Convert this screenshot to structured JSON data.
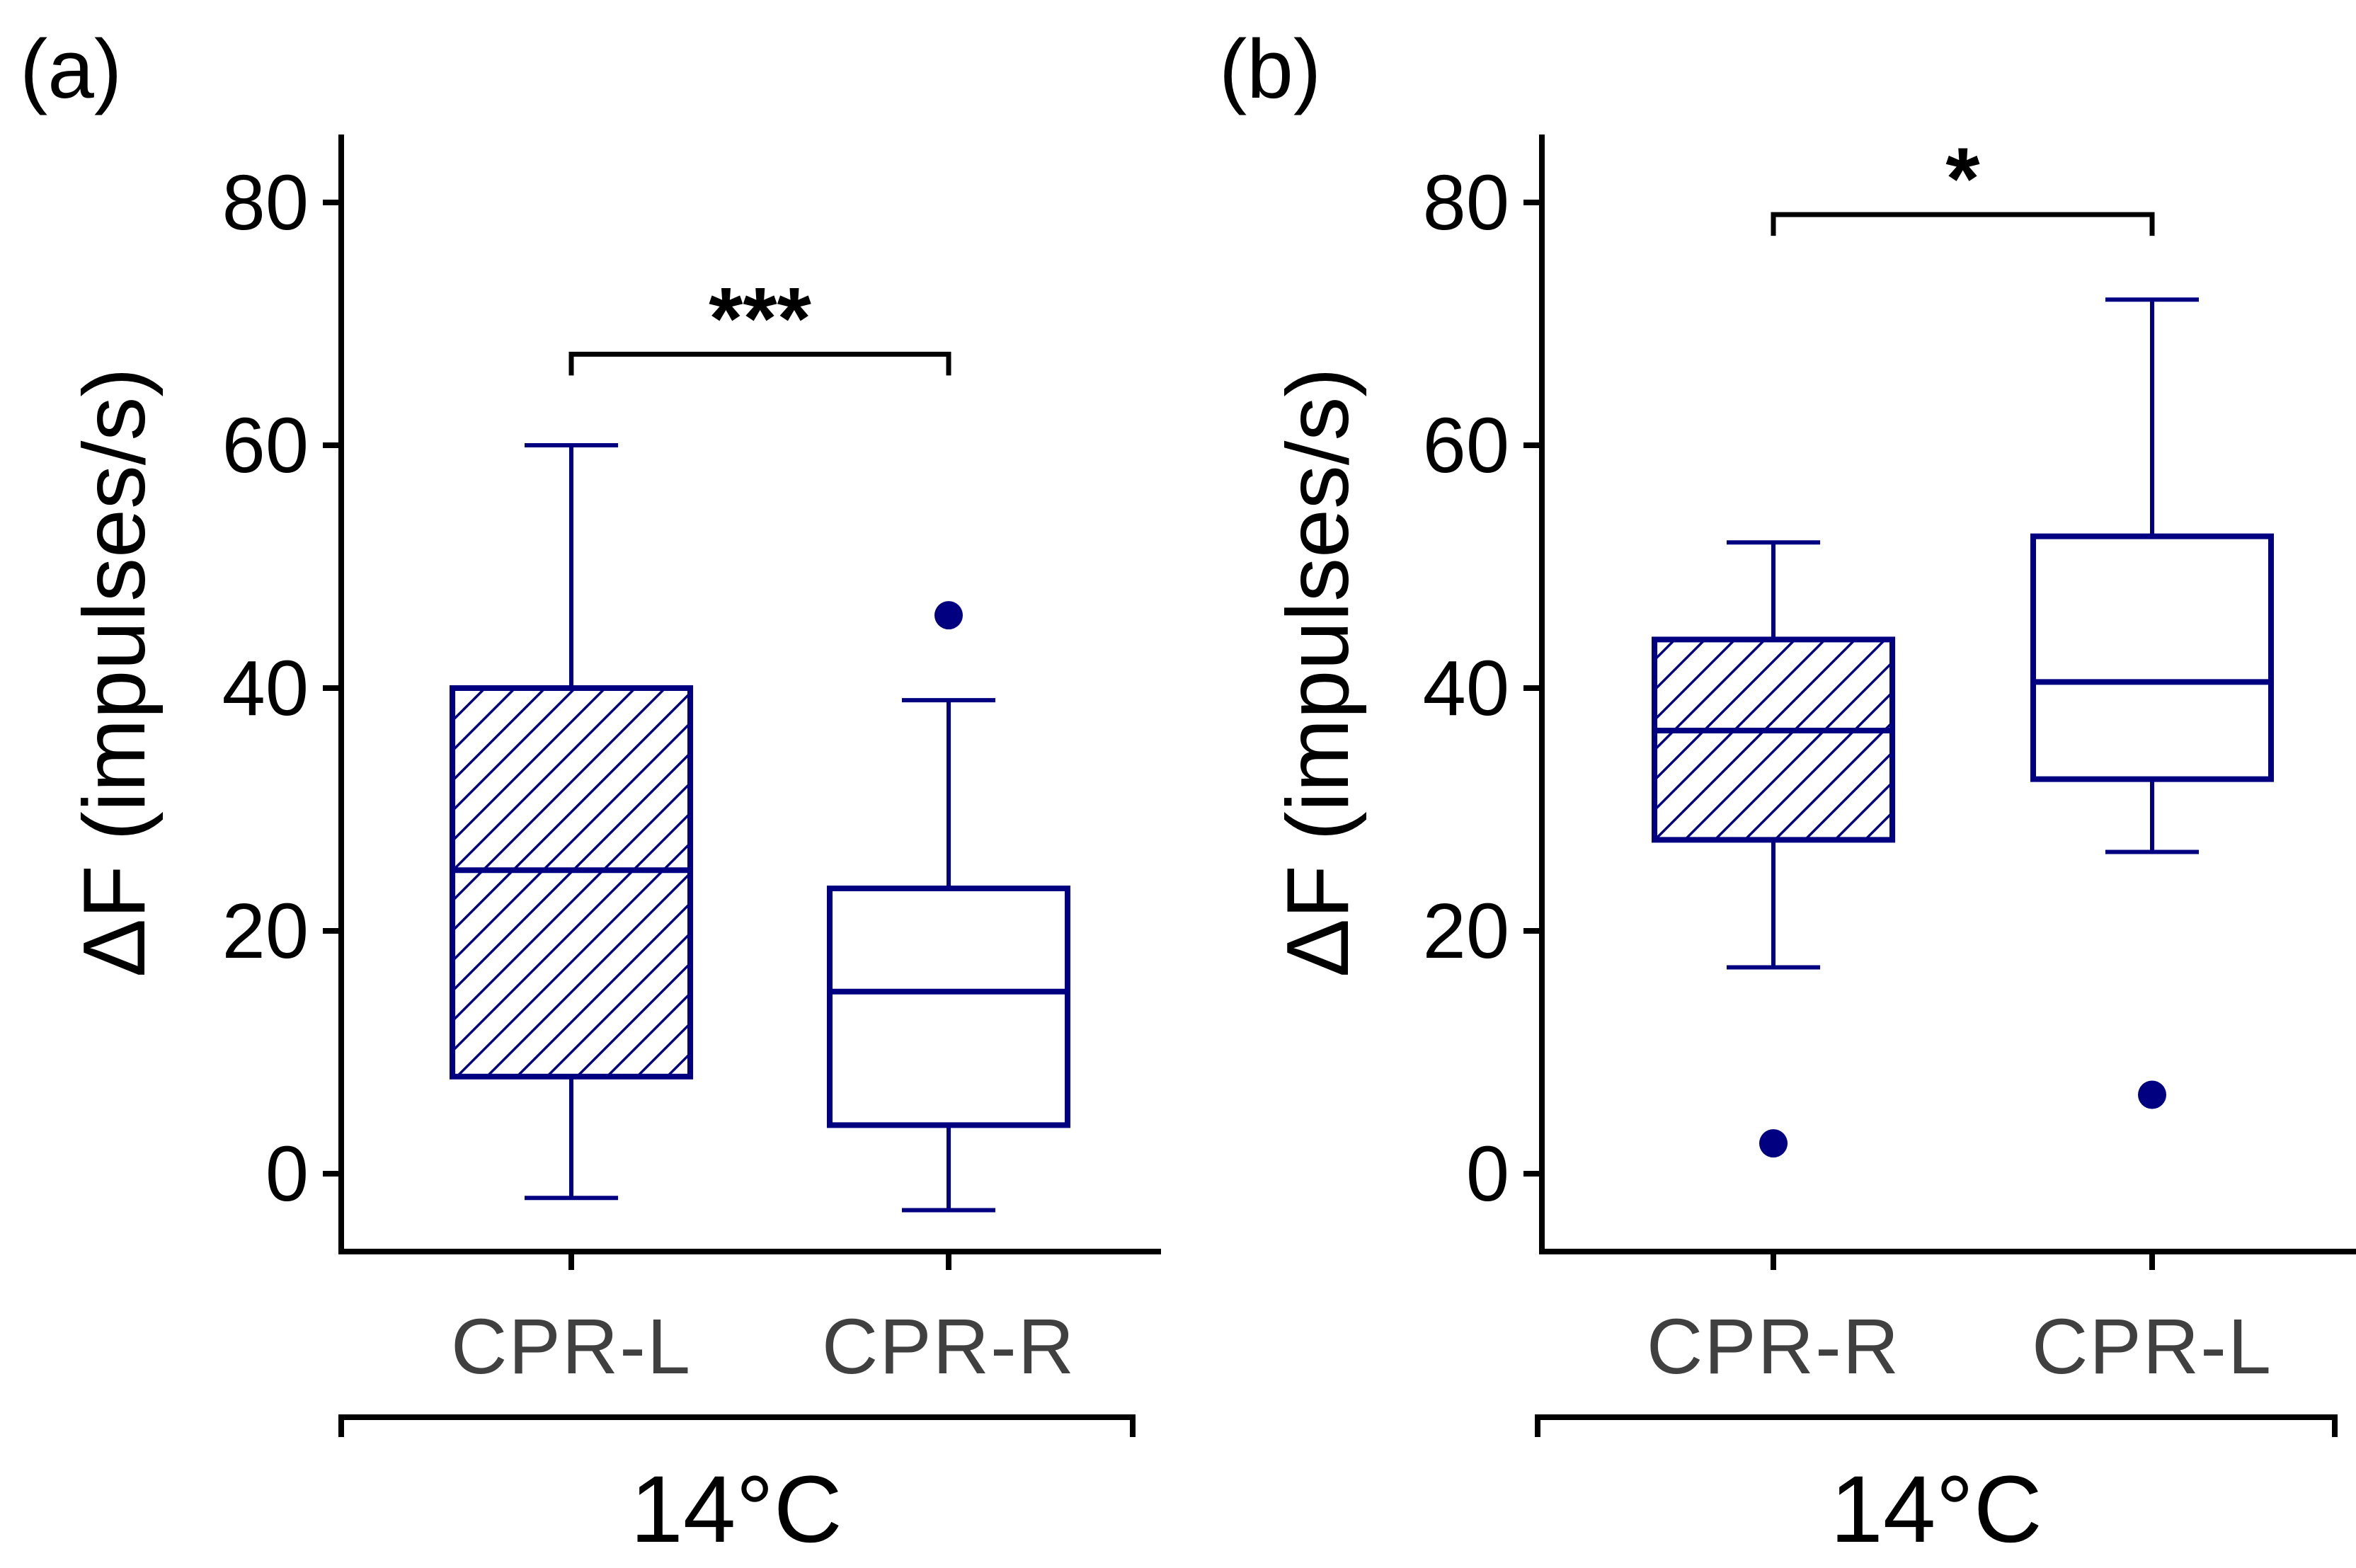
{
  "colors": {
    "box": "#000080",
    "axis": "#000000",
    "category_text": "#404040"
  },
  "chart_data": [
    {
      "panel_label": "(a)",
      "type": "box",
      "ylabel": "ΔF (impulses/s)",
      "ylim": [
        -7,
        85
      ],
      "yticks": [
        0,
        20,
        40,
        60,
        80
      ],
      "group_label": "14°C",
      "categories": [
        "CPR-L",
        "CPR-R"
      ],
      "boxes": [
        {
          "category": "CPR-L",
          "hatched": true,
          "whisker_low": -2,
          "q1": 8,
          "median": 25,
          "q3": 40,
          "whisker_high": 60,
          "outliers": []
        },
        {
          "category": "CPR-R",
          "hatched": false,
          "whisker_low": -3,
          "q1": 4,
          "median": 15,
          "q3": 23.5,
          "whisker_high": 39,
          "outliers": [
            46
          ]
        }
      ],
      "significance": {
        "from": "CPR-L",
        "to": "CPR-R",
        "label": "***",
        "y": 67.5
      }
    },
    {
      "panel_label": "(b)",
      "type": "box",
      "ylabel": "ΔF (impulses/s)",
      "ylim": [
        -7,
        85
      ],
      "yticks": [
        0,
        20,
        40,
        60,
        80
      ],
      "group_label": "14°C",
      "categories": [
        "CPR-R",
        "CPR-L"
      ],
      "boxes": [
        {
          "category": "CPR-R",
          "hatched": true,
          "whisker_low": 17,
          "q1": 27.5,
          "median": 36.5,
          "q3": 44,
          "whisker_high": 52,
          "outliers": [
            2.5
          ]
        },
        {
          "category": "CPR-L",
          "hatched": false,
          "whisker_low": 26.5,
          "q1": 32.5,
          "median": 40.5,
          "q3": 52.5,
          "whisker_high": 72,
          "outliers": [
            6.5
          ]
        }
      ],
      "significance": {
        "from": "CPR-R",
        "to": "CPR-L",
        "label": "*",
        "y": 79
      }
    }
  ]
}
